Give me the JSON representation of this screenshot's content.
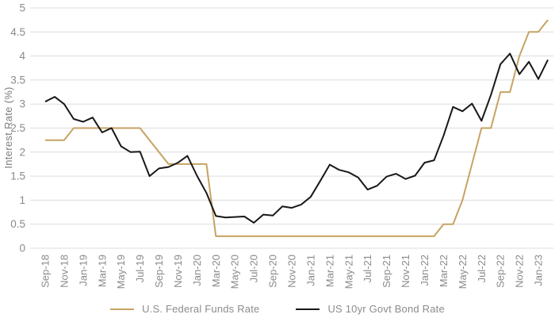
{
  "chart_data": {
    "type": "line",
    "title": "",
    "xlabel": "",
    "ylabel": "Interest Rate (%)",
    "ylim": [
      0,
      5
    ],
    "ytick_step": 0.5,
    "ytick_labels_top_to_bottom": [
      "5",
      "4.5",
      "4",
      "3.5",
      "3",
      "2.5",
      "2",
      "1.5",
      "1",
      "0.5",
      "0"
    ],
    "grid": "horizontal-only",
    "legend_position": "bottom-center",
    "x_tick_every": 2,
    "x_tick_labels_shown": [
      "Sep-18",
      "Nov-18",
      "Jan-19",
      "Mar-19",
      "May-19",
      "Jul-19",
      "Sep-19",
      "Nov-19",
      "Jan-20",
      "Mar-20",
      "May-20",
      "Jul-20",
      "Sep-20",
      "Nov-20",
      "Jan-21",
      "Mar-21",
      "May-21",
      "Jul-21",
      "Sep-21",
      "Nov-21",
      "Jan-22",
      "Mar-22",
      "May-22",
      "Jul-22",
      "Sep-22",
      "Nov-22",
      "Jan-23"
    ],
    "categories": [
      "Sep-18",
      "Oct-18",
      "Nov-18",
      "Dec-18",
      "Jan-19",
      "Feb-19",
      "Mar-19",
      "Apr-19",
      "May-19",
      "Jun-19",
      "Jul-19",
      "Aug-19",
      "Sep-19",
      "Oct-19",
      "Nov-19",
      "Dec-19",
      "Jan-20",
      "Feb-20",
      "Mar-20",
      "Apr-20",
      "May-20",
      "Jun-20",
      "Jul-20",
      "Aug-20",
      "Sep-20",
      "Oct-20",
      "Nov-20",
      "Dec-20",
      "Jan-21",
      "Feb-21",
      "Mar-21",
      "Apr-21",
      "May-21",
      "Jun-21",
      "Jul-21",
      "Aug-21",
      "Sep-21",
      "Oct-21",
      "Nov-21",
      "Dec-21",
      "Jan-22",
      "Feb-22",
      "Mar-22",
      "Apr-22",
      "May-22",
      "Jun-22",
      "Jul-22",
      "Aug-22",
      "Sep-22",
      "Oct-22",
      "Nov-22",
      "Dec-22",
      "Jan-23",
      "Feb-23"
    ],
    "series": [
      {
        "name": "U.S. Federal Funds Rate",
        "color": "#C6A363",
        "stroke_width": 2,
        "values": [
          2.25,
          2.25,
          2.25,
          2.5,
          2.5,
          2.5,
          2.5,
          2.5,
          2.5,
          2.5,
          2.5,
          2.25,
          2.0,
          1.75,
          1.75,
          1.75,
          1.75,
          1.75,
          0.25,
          0.25,
          0.25,
          0.25,
          0.25,
          0.25,
          0.25,
          0.25,
          0.25,
          0.25,
          0.25,
          0.25,
          0.25,
          0.25,
          0.25,
          0.25,
          0.25,
          0.25,
          0.25,
          0.25,
          0.25,
          0.25,
          0.25,
          0.25,
          0.5,
          0.5,
          1.0,
          1.75,
          2.5,
          2.5,
          3.25,
          3.25,
          4.0,
          4.5,
          4.5,
          4.75
        ]
      },
      {
        "name": "US 10yr Govt Bond Rate",
        "color": "#181818",
        "stroke_width": 2,
        "values": [
          3.05,
          3.15,
          3.0,
          2.69,
          2.63,
          2.72,
          2.41,
          2.5,
          2.12,
          2.0,
          2.01,
          1.5,
          1.66,
          1.69,
          1.78,
          1.92,
          1.51,
          1.15,
          0.67,
          0.64,
          0.65,
          0.66,
          0.53,
          0.7,
          0.68,
          0.87,
          0.84,
          0.91,
          1.07,
          1.4,
          1.74,
          1.63,
          1.58,
          1.47,
          1.22,
          1.3,
          1.49,
          1.55,
          1.44,
          1.51,
          1.78,
          1.83,
          2.34,
          2.94,
          2.85,
          3.01,
          2.65,
          3.19,
          3.83,
          4.05,
          3.62,
          3.88,
          3.52,
          3.92
        ]
      }
    ],
    "style": {
      "grid_color": "#dcdcdc",
      "tick_label_color": "#8a8a8a",
      "axis_title_color": "#7d7d7d",
      "legend_text_color": "#8c8c8c",
      "background": "#ffffff"
    }
  }
}
